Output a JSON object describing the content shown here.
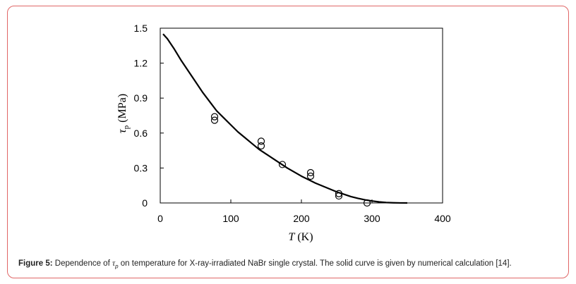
{
  "caption": {
    "label": "Figure 5:",
    "text_before": "Dependence of",
    "symbol": "τ",
    "symbol_sub": "p",
    "text_after": "on temperature for X-ray-irradiated NaBr single crystal. The solid curve is given by numerical calculation [14]."
  },
  "chart_data": {
    "type": "scatter",
    "xlabel_italic": "T",
    "xlabel_unit": "(K)",
    "ylabel_symbol": "τ",
    "ylabel_sub": "p",
    "ylabel_unit": "(MPa)",
    "xlim": [
      0,
      400
    ],
    "ylim": [
      0,
      1.5
    ],
    "x_ticks": [
      "0",
      "100",
      "200",
      "300",
      "400"
    ],
    "y_ticks": [
      "0",
      "0.3",
      "0.6",
      "0.9",
      "1.2",
      "1.5"
    ],
    "grid": false,
    "series": [
      {
        "kind": "markers",
        "marker": "open-circle",
        "points": [
          [
            77,
            0.71
          ],
          [
            77,
            0.74
          ],
          [
            143,
            0.49
          ],
          [
            143,
            0.53
          ],
          [
            173,
            0.33
          ],
          [
            213,
            0.23
          ],
          [
            213,
            0.26
          ],
          [
            253,
            0.06
          ],
          [
            253,
            0.08
          ],
          [
            293,
            0.0
          ]
        ]
      },
      {
        "kind": "line",
        "style": "solid",
        "points": [
          [
            4,
            1.45
          ],
          [
            10,
            1.41
          ],
          [
            20,
            1.32
          ],
          [
            30,
            1.22
          ],
          [
            40,
            1.13
          ],
          [
            50,
            1.04
          ],
          [
            60,
            0.95
          ],
          [
            70,
            0.87
          ],
          [
            80,
            0.79
          ],
          [
            90,
            0.73
          ],
          [
            100,
            0.67
          ],
          [
            110,
            0.61
          ],
          [
            120,
            0.56
          ],
          [
            130,
            0.51
          ],
          [
            140,
            0.46
          ],
          [
            150,
            0.42
          ],
          [
            160,
            0.38
          ],
          [
            170,
            0.34
          ],
          [
            180,
            0.3
          ],
          [
            190,
            0.265
          ],
          [
            200,
            0.23
          ],
          [
            210,
            0.2
          ],
          [
            220,
            0.17
          ],
          [
            230,
            0.145
          ],
          [
            240,
            0.12
          ],
          [
            250,
            0.095
          ],
          [
            260,
            0.075
          ],
          [
            270,
            0.055
          ],
          [
            280,
            0.04
          ],
          [
            290,
            0.027
          ],
          [
            300,
            0.017
          ],
          [
            310,
            0.009
          ],
          [
            320,
            0.004
          ],
          [
            330,
            0.0015
          ],
          [
            340,
            0.0003
          ],
          [
            350,
            0.0
          ]
        ]
      }
    ]
  }
}
